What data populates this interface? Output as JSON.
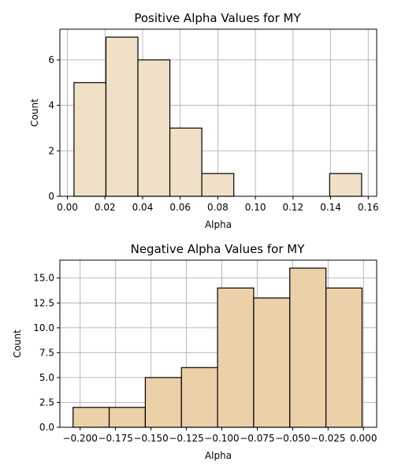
{
  "chart_data": [
    {
      "type": "bar",
      "title": "Positive Alpha Values for MY",
      "xlabel": "Alpha",
      "ylabel": "Count",
      "color": "#f0e0c8",
      "edge_color": "#000000",
      "grid": true,
      "bins": [
        {
          "x0": 0.0035,
          "x1": 0.0205,
          "value": 5
        },
        {
          "x0": 0.0205,
          "x1": 0.0375,
          "value": 7
        },
        {
          "x0": 0.0375,
          "x1": 0.0545,
          "value": 6
        },
        {
          "x0": 0.0545,
          "x1": 0.0715,
          "value": 3
        },
        {
          "x0": 0.0715,
          "x1": 0.0885,
          "value": 1
        },
        {
          "x0": 0.0885,
          "x1": 0.1055,
          "value": 0
        },
        {
          "x0": 0.1055,
          "x1": 0.1225,
          "value": 0
        },
        {
          "x0": 0.1225,
          "x1": 0.1395,
          "value": 0
        },
        {
          "x0": 0.1395,
          "x1": 0.1565,
          "value": 1
        }
      ],
      "xlim": [
        -0.004,
        0.1645
      ],
      "ylim": [
        0,
        7.35
      ],
      "xticks": [
        {
          "value": 0.0,
          "label": "0.00"
        },
        {
          "value": 0.02,
          "label": "0.02"
        },
        {
          "value": 0.04,
          "label": "0.04"
        },
        {
          "value": 0.06,
          "label": "0.06"
        },
        {
          "value": 0.08,
          "label": "0.08"
        },
        {
          "value": 0.1,
          "label": "0.10"
        },
        {
          "value": 0.12,
          "label": "0.12"
        },
        {
          "value": 0.14,
          "label": "0.14"
        },
        {
          "value": 0.16,
          "label": "0.16"
        }
      ],
      "yticks": [
        {
          "value": 0,
          "label": "0"
        },
        {
          "value": 2,
          "label": "2"
        },
        {
          "value": 4,
          "label": "4"
        },
        {
          "value": 6,
          "label": "6"
        }
      ]
    },
    {
      "type": "bar",
      "title": "Negative Alpha Values for MY",
      "xlabel": "Alpha",
      "ylabel": "Count",
      "color": "#ebd0a8",
      "edge_color": "#000000",
      "grid": true,
      "bins": [
        {
          "x0": -0.205,
          "x1": -0.1795,
          "value": 2
        },
        {
          "x0": -0.1795,
          "x1": -0.154,
          "value": 2
        },
        {
          "x0": -0.154,
          "x1": -0.1285,
          "value": 5
        },
        {
          "x0": -0.1285,
          "x1": -0.103,
          "value": 6
        },
        {
          "x0": -0.103,
          "x1": -0.0775,
          "value": 14
        },
        {
          "x0": -0.0775,
          "x1": -0.052,
          "value": 13
        },
        {
          "x0": -0.052,
          "x1": -0.0265,
          "value": 16
        },
        {
          "x0": -0.0265,
          "x1": -0.001,
          "value": 14
        }
      ],
      "xlim": [
        -0.2143,
        0.0093
      ],
      "ylim": [
        0,
        16.8
      ],
      "xticks": [
        {
          "value": -0.2,
          "label": "−0.200"
        },
        {
          "value": -0.175,
          "label": "−0.175"
        },
        {
          "value": -0.15,
          "label": "−0.150"
        },
        {
          "value": -0.125,
          "label": "−0.125"
        },
        {
          "value": -0.1,
          "label": "−0.100"
        },
        {
          "value": -0.075,
          "label": "−0.075"
        },
        {
          "value": -0.05,
          "label": "−0.050"
        },
        {
          "value": -0.025,
          "label": "−0.025"
        },
        {
          "value": 0.0,
          "label": "0.000"
        }
      ],
      "yticks": [
        {
          "value": 0,
          "label": "0.0"
        },
        {
          "value": 2.5,
          "label": "2.5"
        },
        {
          "value": 5,
          "label": "5.0"
        },
        {
          "value": 7.5,
          "label": "7.5"
        },
        {
          "value": 10,
          "label": "10.0"
        },
        {
          "value": 12.5,
          "label": "12.5"
        },
        {
          "value": 15,
          "label": "15.0"
        }
      ]
    }
  ]
}
